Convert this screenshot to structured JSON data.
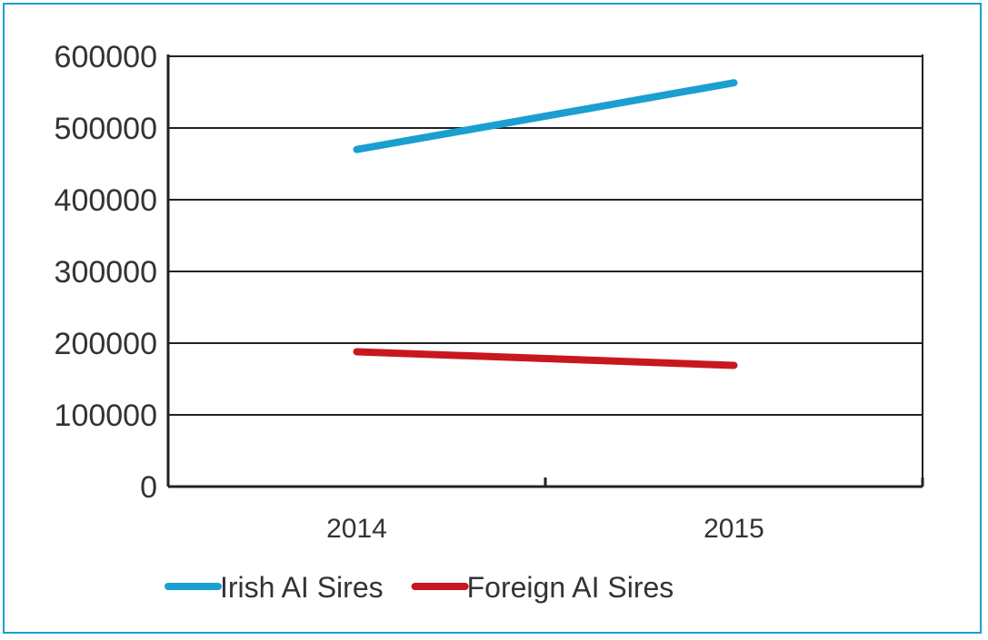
{
  "chart_data": {
    "type": "line",
    "categories": [
      "2014",
      "2015"
    ],
    "series": [
      {
        "name": "Irish AI Sires",
        "values": [
          470000,
          563000
        ],
        "color": "#1a9fd0"
      },
      {
        "name": "Foreign AI Sires",
        "values": [
          188000,
          169000
        ],
        "color": "#c8171e"
      }
    ],
    "ylim": [
      0,
      600000
    ],
    "yticks": [
      0,
      100000,
      200000,
      300000,
      400000,
      500000,
      600000
    ],
    "ytick_labels": [
      "0",
      "100000",
      "200000",
      "300000",
      "400000",
      "500000",
      "600000"
    ],
    "grid": true,
    "legend_position": "bottom-left"
  },
  "colors": {
    "frame": "#1a9fd0"
  }
}
